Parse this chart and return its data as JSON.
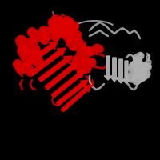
{
  "background_color": "#000000",
  "red_color": "#dd0000",
  "red_dark": "#aa0000",
  "gray_color": "#b0b0b0",
  "gray_dark": "#888888",
  "figsize": [
    2.0,
    2.0
  ],
  "dpi": 100,
  "xlim": [
    0,
    200
  ],
  "ylim": [
    0,
    200
  ]
}
